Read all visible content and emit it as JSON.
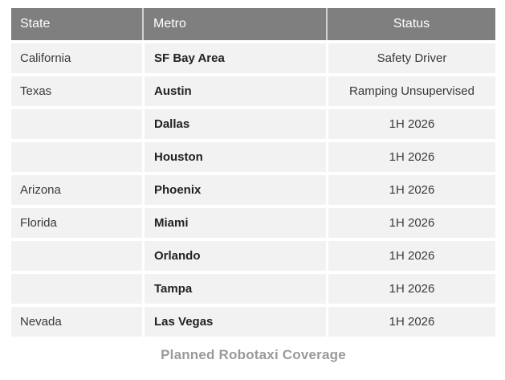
{
  "colors": {
    "header_bg": "#7f7f7f",
    "header_text": "#ffffff",
    "header_divider": "#d2d2d2",
    "row_bg": "#f2f2f2",
    "divider": "#ffffff",
    "body_text": "#3a3a3a",
    "metro_text": "#222222",
    "caption_text": "#9a9a9a"
  },
  "table": {
    "columns": [
      {
        "label": "State",
        "align": "left"
      },
      {
        "label": "Metro",
        "align": "left"
      },
      {
        "label": "Status",
        "align": "center"
      }
    ],
    "rows": [
      {
        "state": "California",
        "metro": "SF Bay Area",
        "status": "Safety Driver"
      },
      {
        "state": "Texas",
        "metro": "Austin",
        "status": "Ramping Unsupervised"
      },
      {
        "state": "",
        "metro": "Dallas",
        "status": "1H 2026"
      },
      {
        "state": "",
        "metro": "Houston",
        "status": "1H 2026"
      },
      {
        "state": "Arizona",
        "metro": "Phoenix",
        "status": "1H 2026"
      },
      {
        "state": "Florida",
        "metro": "Miami",
        "status": "1H 2026"
      },
      {
        "state": "",
        "metro": "Orlando",
        "status": "1H 2026"
      },
      {
        "state": "",
        "metro": "Tampa",
        "status": "1H 2026"
      },
      {
        "state": "Nevada",
        "metro": "Las Vegas",
        "status": "1H 2026"
      }
    ]
  },
  "caption": "Planned Robotaxi Coverage"
}
